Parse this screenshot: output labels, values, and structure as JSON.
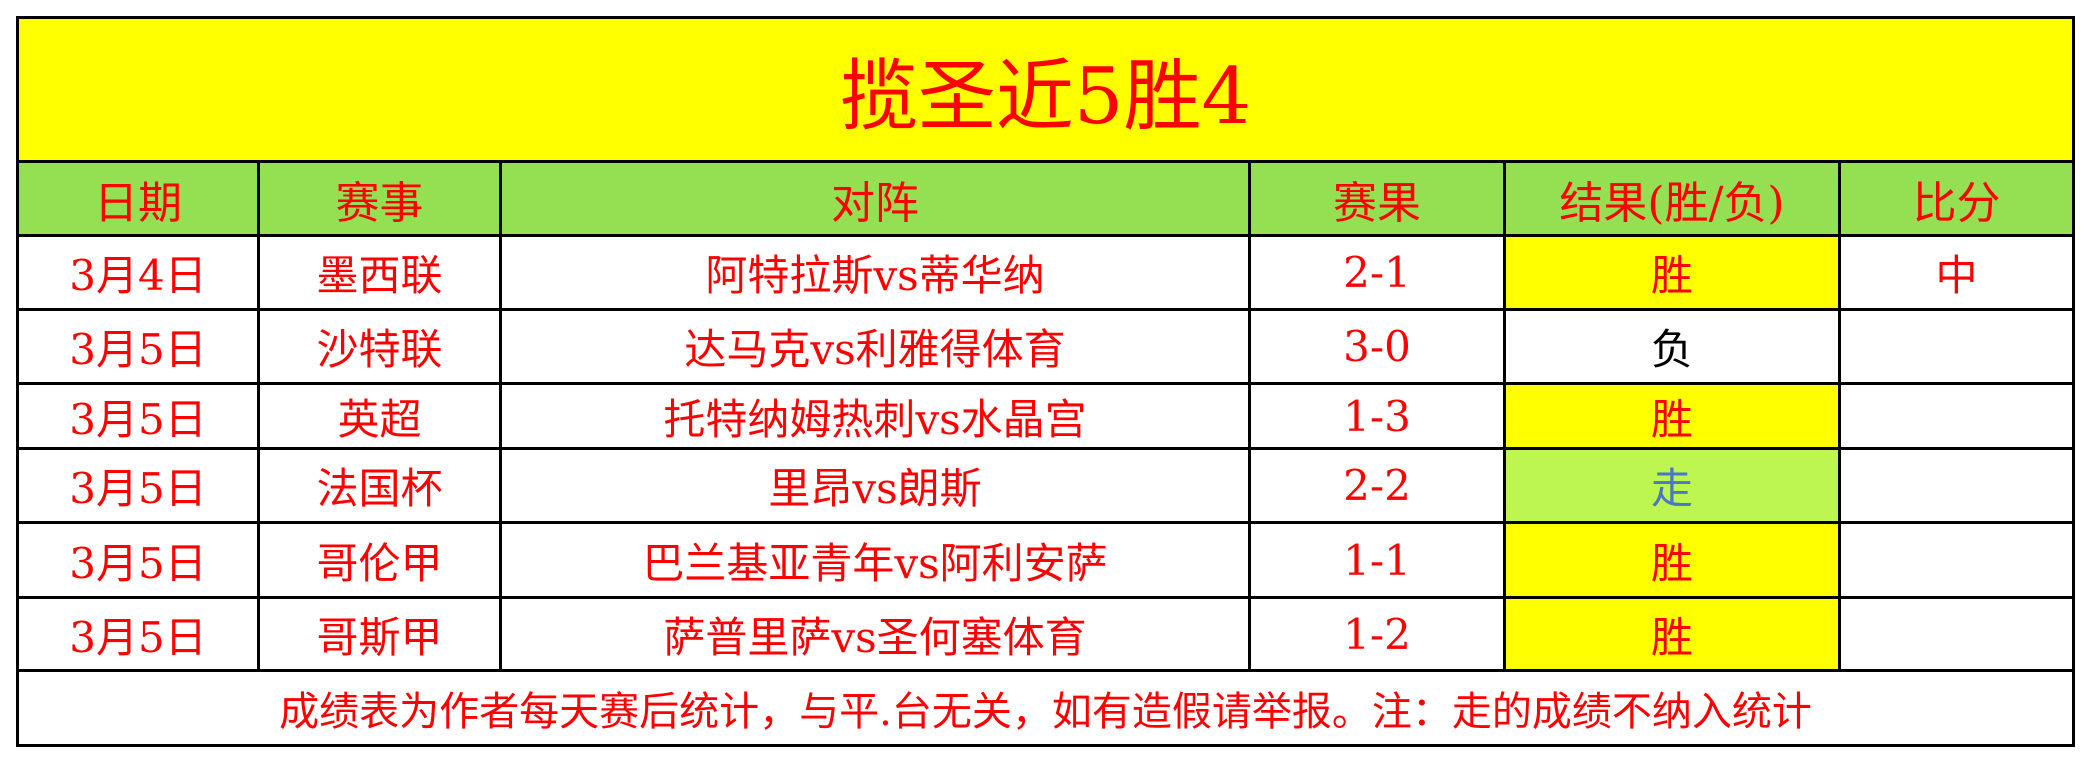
{
  "title": "揽圣近5胜4",
  "headers": [
    "日期",
    "赛事",
    "对阵",
    "赛果",
    "结果(胜/负)",
    "比分"
  ],
  "rows": [
    {
      "date": "3月4日",
      "league": "墨西联",
      "match": "阿特拉斯vs蒂华纳",
      "score": "2-1",
      "result": "胜",
      "pick": "中"
    },
    {
      "date": "3月5日",
      "league": "沙特联",
      "match": "达马克vs利雅得体育",
      "score": "3-0",
      "result": "负",
      "pick": ""
    },
    {
      "date": "3月5日",
      "league": "英超",
      "match": "托特纳姆热刺vs水晶宫",
      "score": "1-3",
      "result": "胜",
      "pick": ""
    },
    {
      "date": "3月5日",
      "league": "法国杯",
      "match": "里昂vs朗斯",
      "score": "2-2",
      "result": "走",
      "pick": ""
    },
    {
      "date": "3月5日",
      "league": "哥伦甲",
      "match": "巴兰基亚青年vs阿利安萨",
      "score": "1-1",
      "result": "胜",
      "pick": ""
    },
    {
      "date": "3月5日",
      "league": "哥斯甲",
      "match": "萨普里萨vs圣何塞体育",
      "score": "1-2",
      "result": "胜",
      "pick": ""
    }
  ],
  "footer": "成绩表为作者每天赛后统计，与平.台无关，如有造假请举报。注：走的成绩不纳入统计",
  "colors": {
    "title_bg": "#ffff00",
    "header_bg": "#94df52",
    "win_bg": "#ffff00",
    "draw_bg": "#bdf551",
    "text": "#ff0000"
  }
}
